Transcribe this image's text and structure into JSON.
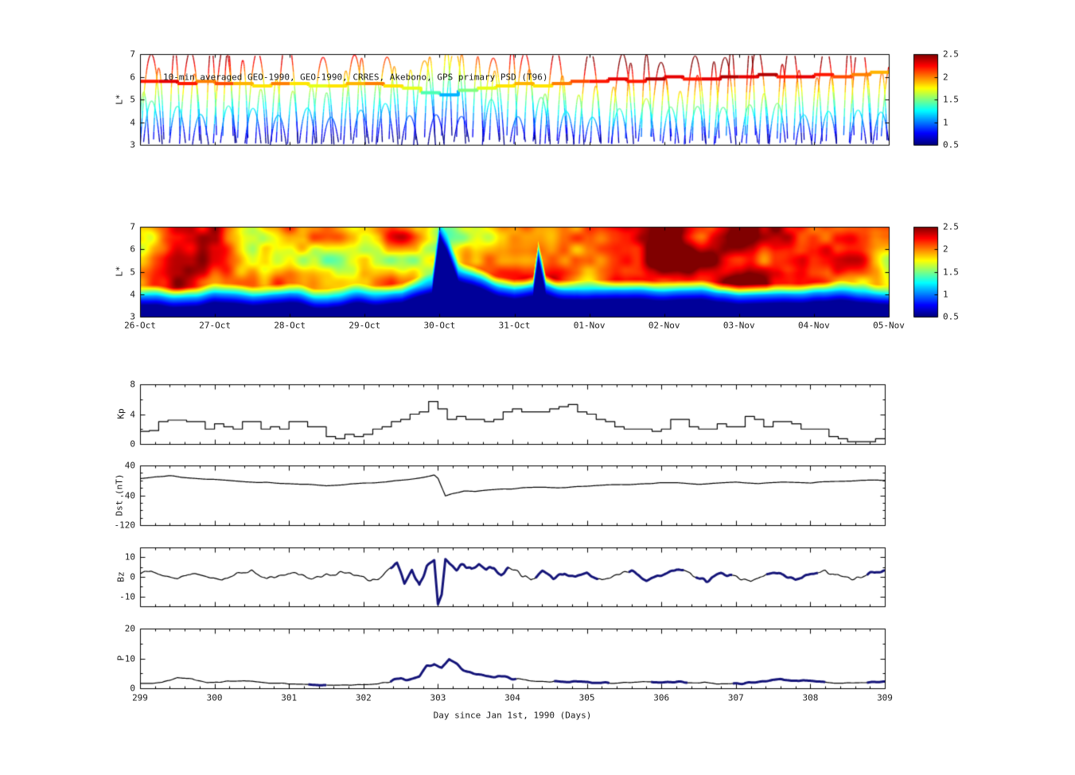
{
  "figure": {
    "background": "#ffffff",
    "text_color": "#1a1a1a"
  },
  "chart_data": [
    {
      "type": "line",
      "title": "10-min averaged GEO-1990, GEO-1990, CRRES, Akebono, GPS primary PSD (T96)",
      "ylabel": "L*",
      "ylim": [
        3,
        7
      ],
      "yticks": [
        3,
        4,
        5,
        6,
        7
      ],
      "xlim": [
        299,
        309
      ],
      "xticks": [
        299,
        300,
        301,
        302,
        303,
        304,
        305,
        306,
        307,
        308,
        309
      ],
      "colorbar": {
        "vmin": 0.5,
        "vmax": 2.5,
        "ticks": [
          0.5,
          1,
          1.5,
          2,
          2.5
        ]
      },
      "geo_track_day_L_psd": [
        [
          299.0,
          5.8,
          2.2
        ],
        [
          299.25,
          5.8,
          2.3
        ],
        [
          299.5,
          5.7,
          2.2
        ],
        [
          299.75,
          5.8,
          2.0
        ],
        [
          300.0,
          5.7,
          2.1
        ],
        [
          300.25,
          5.7,
          1.9
        ],
        [
          300.5,
          5.6,
          1.8
        ],
        [
          300.75,
          5.7,
          2.0
        ],
        [
          301.0,
          5.7,
          1.8
        ],
        [
          301.25,
          5.6,
          1.7
        ],
        [
          301.5,
          5.6,
          1.8
        ],
        [
          301.75,
          5.7,
          1.9
        ],
        [
          302.0,
          5.7,
          2.0
        ],
        [
          302.25,
          5.6,
          1.8
        ],
        [
          302.5,
          5.5,
          1.7
        ],
        [
          302.75,
          5.3,
          1.4
        ],
        [
          303.0,
          5.2,
          1.1
        ],
        [
          303.25,
          5.4,
          1.5
        ],
        [
          303.5,
          5.5,
          1.7
        ],
        [
          303.75,
          5.6,
          1.8
        ],
        [
          304.0,
          5.7,
          1.9
        ],
        [
          304.25,
          5.6,
          1.8
        ],
        [
          304.5,
          5.7,
          2.0
        ],
        [
          304.75,
          5.8,
          2.1
        ],
        [
          305.0,
          5.8,
          2.2
        ],
        [
          305.25,
          5.9,
          2.3
        ],
        [
          305.5,
          5.8,
          2.2
        ],
        [
          305.75,
          5.9,
          2.4
        ],
        [
          306.0,
          6.0,
          2.3
        ],
        [
          306.25,
          5.9,
          2.2
        ],
        [
          306.5,
          5.9,
          2.3
        ],
        [
          306.75,
          6.0,
          2.4
        ],
        [
          307.0,
          6.0,
          2.3
        ],
        [
          307.25,
          6.1,
          2.4
        ],
        [
          307.5,
          6.0,
          2.2
        ],
        [
          307.75,
          6.0,
          2.3
        ],
        [
          308.0,
          6.1,
          2.2
        ],
        [
          308.25,
          6.0,
          2.1
        ],
        [
          308.5,
          6.1,
          2.0
        ],
        [
          308.75,
          6.2,
          1.9
        ],
        [
          309.0,
          6.2,
          1.9
        ]
      ],
      "orbit_families": [
        {
          "name": "CRRES",
          "period": 0.225,
          "offset": 0.03,
          "peak_min": 5.2,
          "peak_max": 7.4,
          "perigee": 2.5,
          "seed": 1
        },
        {
          "name": "GPS",
          "period": 0.45,
          "offset": 0.18,
          "peak_min": 6.6,
          "peak_max": 7.8,
          "perigee": 2.6,
          "seed": 7
        },
        {
          "name": "Akebono",
          "period": 0.35,
          "offset": 0.12,
          "peak_min": 4.2,
          "peak_max": 5.1,
          "perigee": 2.7,
          "seed": 13
        }
      ]
    },
    {
      "type": "heatmap",
      "ylabel": "L*",
      "ylim": [
        3,
        7
      ],
      "yticks": [
        3,
        4,
        5,
        6,
        7
      ],
      "xlim": [
        299,
        309
      ],
      "xticks": [
        299,
        300,
        301,
        302,
        303,
        304,
        305,
        306,
        307,
        308,
        309
      ],
      "xtick_labels": [
        "26-Oct",
        "27-Oct",
        "28-Oct",
        "29-Oct",
        "30-Oct",
        "31-Oct",
        "01-Nov",
        "02-Nov",
        "03-Nov",
        "04-Nov",
        "05-Nov"
      ],
      "colorbar": {
        "vmin": 0.5,
        "vmax": 2.5,
        "ticks": [
          0.5,
          1,
          1.5,
          2,
          2.5
        ]
      },
      "low_psd_boundary_day_L": [
        [
          299,
          3.85
        ],
        [
          300,
          3.95
        ],
        [
          300.5,
          3.8
        ],
        [
          301,
          3.9
        ],
        [
          301.5,
          3.8
        ],
        [
          302,
          3.9
        ],
        [
          302.5,
          4.0
        ],
        [
          302.9,
          4.4
        ],
        [
          303.0,
          6.9
        ],
        [
          303.1,
          6.3
        ],
        [
          303.25,
          5.0
        ],
        [
          303.5,
          4.6
        ],
        [
          303.8,
          4.3
        ],
        [
          304.0,
          4.2
        ],
        [
          304.25,
          4.3
        ],
        [
          304.32,
          5.9
        ],
        [
          304.42,
          4.4
        ],
        [
          304.8,
          4.15
        ],
        [
          305,
          4.1
        ],
        [
          305.5,
          4.05
        ],
        [
          306,
          4.0
        ],
        [
          306.5,
          4.05
        ],
        [
          307,
          4.0
        ],
        [
          307.5,
          4.05
        ],
        [
          308,
          4.1
        ],
        [
          308.5,
          4.05
        ],
        [
          309,
          4.0
        ]
      ],
      "intensity_day_psd": [
        [
          299,
          2.05
        ],
        [
          299.5,
          2.1
        ],
        [
          300,
          2.15
        ],
        [
          300.5,
          2.0
        ],
        [
          301,
          2.05
        ],
        [
          301.5,
          1.95
        ],
        [
          302,
          1.9
        ],
        [
          302.5,
          1.85
        ],
        [
          302.9,
          1.7
        ],
        [
          303.1,
          1.55
        ],
        [
          303.4,
          1.8
        ],
        [
          303.8,
          1.95
        ],
        [
          304.2,
          2.0
        ],
        [
          304.6,
          2.1
        ],
        [
          305,
          2.25
        ],
        [
          305.5,
          2.3
        ],
        [
          306,
          2.35
        ],
        [
          306.5,
          2.3
        ],
        [
          307,
          2.3
        ],
        [
          307.5,
          2.25
        ],
        [
          308,
          2.2
        ],
        [
          308.5,
          2.15
        ],
        [
          309,
          2.1
        ]
      ]
    },
    {
      "type": "line",
      "ylabel": "Kp",
      "ylim": [
        0,
        8
      ],
      "yticks": [
        0,
        4,
        8
      ],
      "xlim": [
        299,
        309
      ],
      "x_start": 299,
      "x_step": 0.125,
      "values": [
        1.7,
        1.8,
        3.0,
        3.2,
        3.2,
        3.0,
        3.0,
        2.0,
        2.7,
        2.3,
        2.0,
        3.0,
        3.0,
        2.0,
        2.3,
        2.0,
        3.0,
        3.0,
        2.3,
        2.3,
        1.0,
        0.7,
        1.3,
        1.0,
        1.3,
        2.0,
        2.3,
        3.0,
        3.3,
        4.0,
        4.3,
        5.7,
        4.7,
        3.3,
        3.7,
        3.3,
        3.3,
        3.0,
        3.3,
        4.3,
        4.7,
        4.3,
        4.3,
        4.3,
        4.7,
        5.0,
        5.3,
        4.3,
        4.0,
        3.3,
        3.0,
        2.3,
        2.0,
        2.0,
        2.0,
        1.7,
        2.0,
        3.3,
        3.3,
        2.3,
        2.0,
        2.0,
        2.7,
        2.3,
        2.3,
        3.7,
        3.3,
        2.3,
        3.0,
        3.0,
        2.7,
        2.0,
        2.0,
        2.0,
        1.0,
        0.7,
        0.3,
        0.3,
        0.3,
        0.7
      ]
    },
    {
      "type": "line",
      "ylabel": "Dst (nT)",
      "ylim": [
        -120,
        40
      ],
      "yticks": [
        -120,
        -40,
        40
      ],
      "xlim": [
        299,
        309
      ],
      "points": [
        [
          299.0,
          5
        ],
        [
          299.2,
          10
        ],
        [
          299.4,
          12
        ],
        [
          299.6,
          8
        ],
        [
          299.8,
          5
        ],
        [
          300.0,
          2
        ],
        [
          300.3,
          -2
        ],
        [
          300.6,
          -5
        ],
        [
          300.9,
          -8
        ],
        [
          301.2,
          -10
        ],
        [
          301.5,
          -14
        ],
        [
          301.8,
          -10
        ],
        [
          302.0,
          -8
        ],
        [
          302.3,
          -4
        ],
        [
          302.6,
          2
        ],
        [
          302.8,
          8
        ],
        [
          302.95,
          14
        ],
        [
          303.0,
          5
        ],
        [
          303.1,
          -42
        ],
        [
          303.2,
          -35
        ],
        [
          303.35,
          -28
        ],
        [
          303.5,
          -30
        ],
        [
          303.7,
          -25
        ],
        [
          304.0,
          -22
        ],
        [
          304.3,
          -18
        ],
        [
          304.6,
          -20
        ],
        [
          305.0,
          -15
        ],
        [
          305.4,
          -12
        ],
        [
          305.8,
          -8
        ],
        [
          306.2,
          -6
        ],
        [
          306.5,
          -10
        ],
        [
          306.8,
          -7
        ],
        [
          307.0,
          -5
        ],
        [
          307.3,
          -8
        ],
        [
          307.6,
          -4
        ],
        [
          308.0,
          -6
        ],
        [
          308.4,
          -2
        ],
        [
          308.7,
          0
        ],
        [
          309.0,
          0
        ]
      ],
      "wiggle": {
        "amp_points": [
          [
            299,
            1.2
          ],
          [
            309,
            1.2
          ]
        ],
        "freq": 7
      }
    },
    {
      "type": "line",
      "ylabel": "Bz",
      "ylim": [
        -15,
        15
      ],
      "yticks": [
        -10,
        0,
        10
      ],
      "xlim": [
        299,
        309
      ],
      "points": [
        [
          299.0,
          2
        ],
        [
          299.15,
          3
        ],
        [
          299.3,
          1
        ],
        [
          299.5,
          -1
        ],
        [
          299.7,
          2
        ],
        [
          299.9,
          0
        ],
        [
          300.1,
          -2
        ],
        [
          300.3,
          2
        ],
        [
          300.5,
          3
        ],
        [
          300.7,
          -1
        ],
        [
          300.9,
          1
        ],
        [
          301.1,
          2
        ],
        [
          301.3,
          -1
        ],
        [
          301.5,
          1
        ],
        [
          301.7,
          2
        ],
        [
          301.9,
          1
        ],
        [
          302.0,
          0
        ],
        [
          302.1,
          -2
        ],
        [
          302.2,
          -1
        ],
        [
          302.35,
          5
        ],
        [
          302.45,
          7
        ],
        [
          302.55,
          -3
        ],
        [
          302.65,
          4
        ],
        [
          302.75,
          -5
        ],
        [
          302.85,
          6
        ],
        [
          302.95,
          9
        ],
        [
          303.0,
          -13
        ],
        [
          303.05,
          -8
        ],
        [
          303.1,
          10
        ],
        [
          303.15,
          8
        ],
        [
          303.25,
          5
        ],
        [
          303.35,
          7
        ],
        [
          303.45,
          4
        ],
        [
          303.55,
          6
        ],
        [
          303.65,
          3
        ],
        [
          303.75,
          5
        ],
        [
          303.85,
          2
        ],
        [
          303.95,
          4
        ],
        [
          304.1,
          2
        ],
        [
          304.25,
          -2
        ],
        [
          304.4,
          3
        ],
        [
          304.55,
          -1
        ],
        [
          304.7,
          2
        ],
        [
          304.85,
          0
        ],
        [
          305.0,
          2
        ],
        [
          305.2,
          -2
        ],
        [
          305.4,
          1
        ],
        [
          305.6,
          3
        ],
        [
          305.8,
          -2
        ],
        [
          306.0,
          1
        ],
        [
          306.2,
          4
        ],
        [
          306.4,
          1
        ],
        [
          306.6,
          -2
        ],
        [
          306.8,
          2
        ],
        [
          307.0,
          0
        ],
        [
          307.2,
          -3
        ],
        [
          307.4,
          1
        ],
        [
          307.6,
          2
        ],
        [
          307.8,
          -1
        ],
        [
          308.0,
          1
        ],
        [
          308.2,
          3
        ],
        [
          308.4,
          0
        ],
        [
          308.6,
          -1
        ],
        [
          308.8,
          2
        ],
        [
          309.0,
          3
        ]
      ],
      "wiggle": {
        "amp_points": [
          [
            299,
            0.6
          ],
          [
            302.3,
            0.8
          ],
          [
            302.5,
            2.5
          ],
          [
            303.8,
            2.2
          ],
          [
            304.5,
            1.2
          ],
          [
            309,
            1.0
          ]
        ],
        "freq": 16
      },
      "highlight_ranges": [
        [
          302.35,
          303.95
        ],
        [
          304.3,
          305.15
        ],
        [
          305.55,
          306.3
        ],
        [
          306.45,
          306.95
        ],
        [
          307.4,
          308.1
        ],
        [
          308.75,
          309.0
        ]
      ],
      "highlight_color": "#141478"
    },
    {
      "type": "line",
      "ylabel": "P",
      "ylim": [
        0,
        20
      ],
      "yticks": [
        0,
        10,
        20
      ],
      "xlim": [
        299,
        309
      ],
      "xticks": [
        299,
        300,
        301,
        302,
        303,
        304,
        305,
        306,
        307,
        308,
        309
      ],
      "xlabel": "Day since Jan 1st, 1990 (Days)",
      "points": [
        [
          299.0,
          1.5
        ],
        [
          299.3,
          2
        ],
        [
          299.5,
          3.5
        ],
        [
          299.7,
          3.2
        ],
        [
          299.9,
          1.8
        ],
        [
          300.1,
          2.2
        ],
        [
          300.4,
          2.5
        ],
        [
          300.7,
          1.8
        ],
        [
          301.0,
          1.5
        ],
        [
          301.3,
          1.2
        ],
        [
          301.6,
          1.0
        ],
        [
          301.9,
          1.2
        ],
        [
          302.2,
          1.5
        ],
        [
          302.4,
          2.5
        ],
        [
          302.6,
          3.0
        ],
        [
          302.75,
          4.0
        ],
        [
          302.85,
          7.5
        ],
        [
          302.95,
          8.5
        ],
        [
          303.05,
          7.0
        ],
        [
          303.15,
          9.5
        ],
        [
          303.25,
          8.0
        ],
        [
          303.4,
          5.5
        ],
        [
          303.6,
          4.5
        ],
        [
          303.8,
          4.0
        ],
        [
          304.0,
          3.0
        ],
        [
          304.3,
          2.5
        ],
        [
          304.6,
          2.2
        ],
        [
          305.0,
          2.0
        ],
        [
          305.4,
          1.8
        ],
        [
          305.8,
          2.0
        ],
        [
          306.2,
          2.2
        ],
        [
          306.6,
          1.8
        ],
        [
          307.0,
          1.5
        ],
        [
          307.3,
          2.0
        ],
        [
          307.6,
          3.0
        ],
        [
          307.9,
          2.5
        ],
        [
          308.2,
          2.0
        ],
        [
          308.5,
          1.8
        ],
        [
          308.8,
          2.0
        ],
        [
          309.0,
          2.2
        ]
      ],
      "wiggle": {
        "amp_points": [
          [
            299,
            0.15
          ],
          [
            302.3,
            0.2
          ],
          [
            302.5,
            0.8
          ],
          [
            303.8,
            0.6
          ],
          [
            304.5,
            0.3
          ],
          [
            309,
            0.25
          ]
        ],
        "freq": 12
      },
      "highlight_ranges": [
        [
          301.25,
          301.5
        ],
        [
          302.35,
          304.05
        ],
        [
          304.55,
          305.3
        ],
        [
          305.85,
          306.35
        ],
        [
          306.95,
          308.2
        ],
        [
          308.75,
          309.0
        ]
      ],
      "highlight_color": "#141478"
    }
  ]
}
